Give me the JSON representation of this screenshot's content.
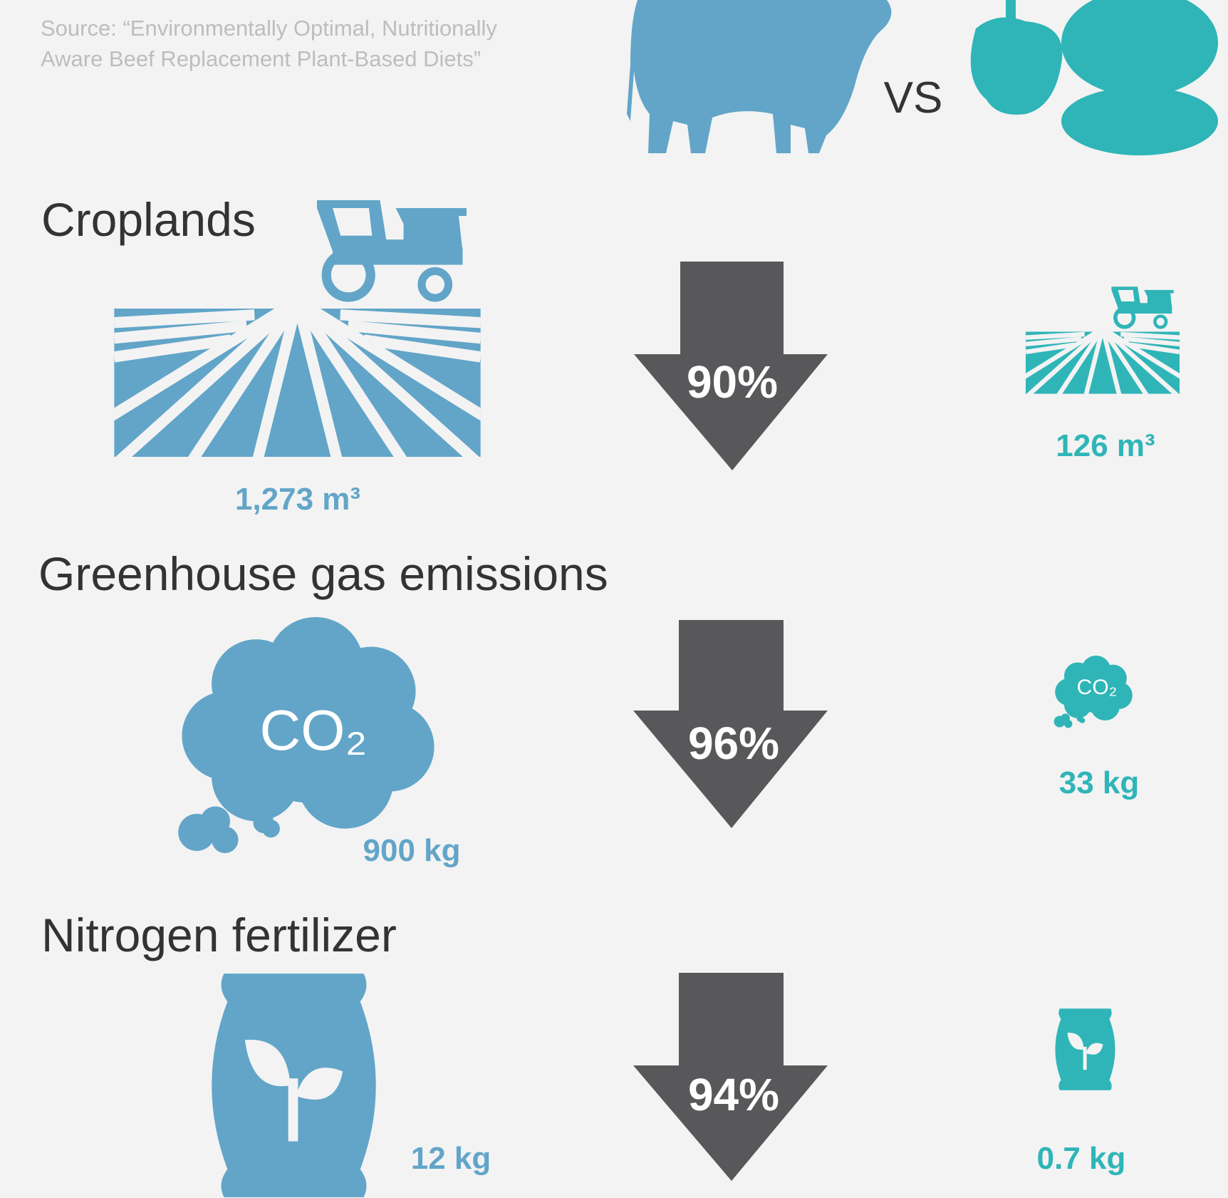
{
  "source": "Source: “Environmentally Optimal, Nutritionally Aware Beef Replacement Plant-Based Diets”",
  "versus": "VS",
  "sections": [
    {
      "title": "Croplands",
      "beef_value": "1,273 m³",
      "reduction": "90%",
      "plant_value": "126 m³"
    },
    {
      "title": "Greenhouse gas emissions",
      "icon_text": "CO₂",
      "beef_value": "900 kg",
      "reduction": "96%",
      "plant_value": "33 kg"
    },
    {
      "title": "Nitrogen fertilizer",
      "beef_value": "12 kg",
      "reduction": "94%",
      "plant_value": "0.7 kg"
    }
  ]
}
